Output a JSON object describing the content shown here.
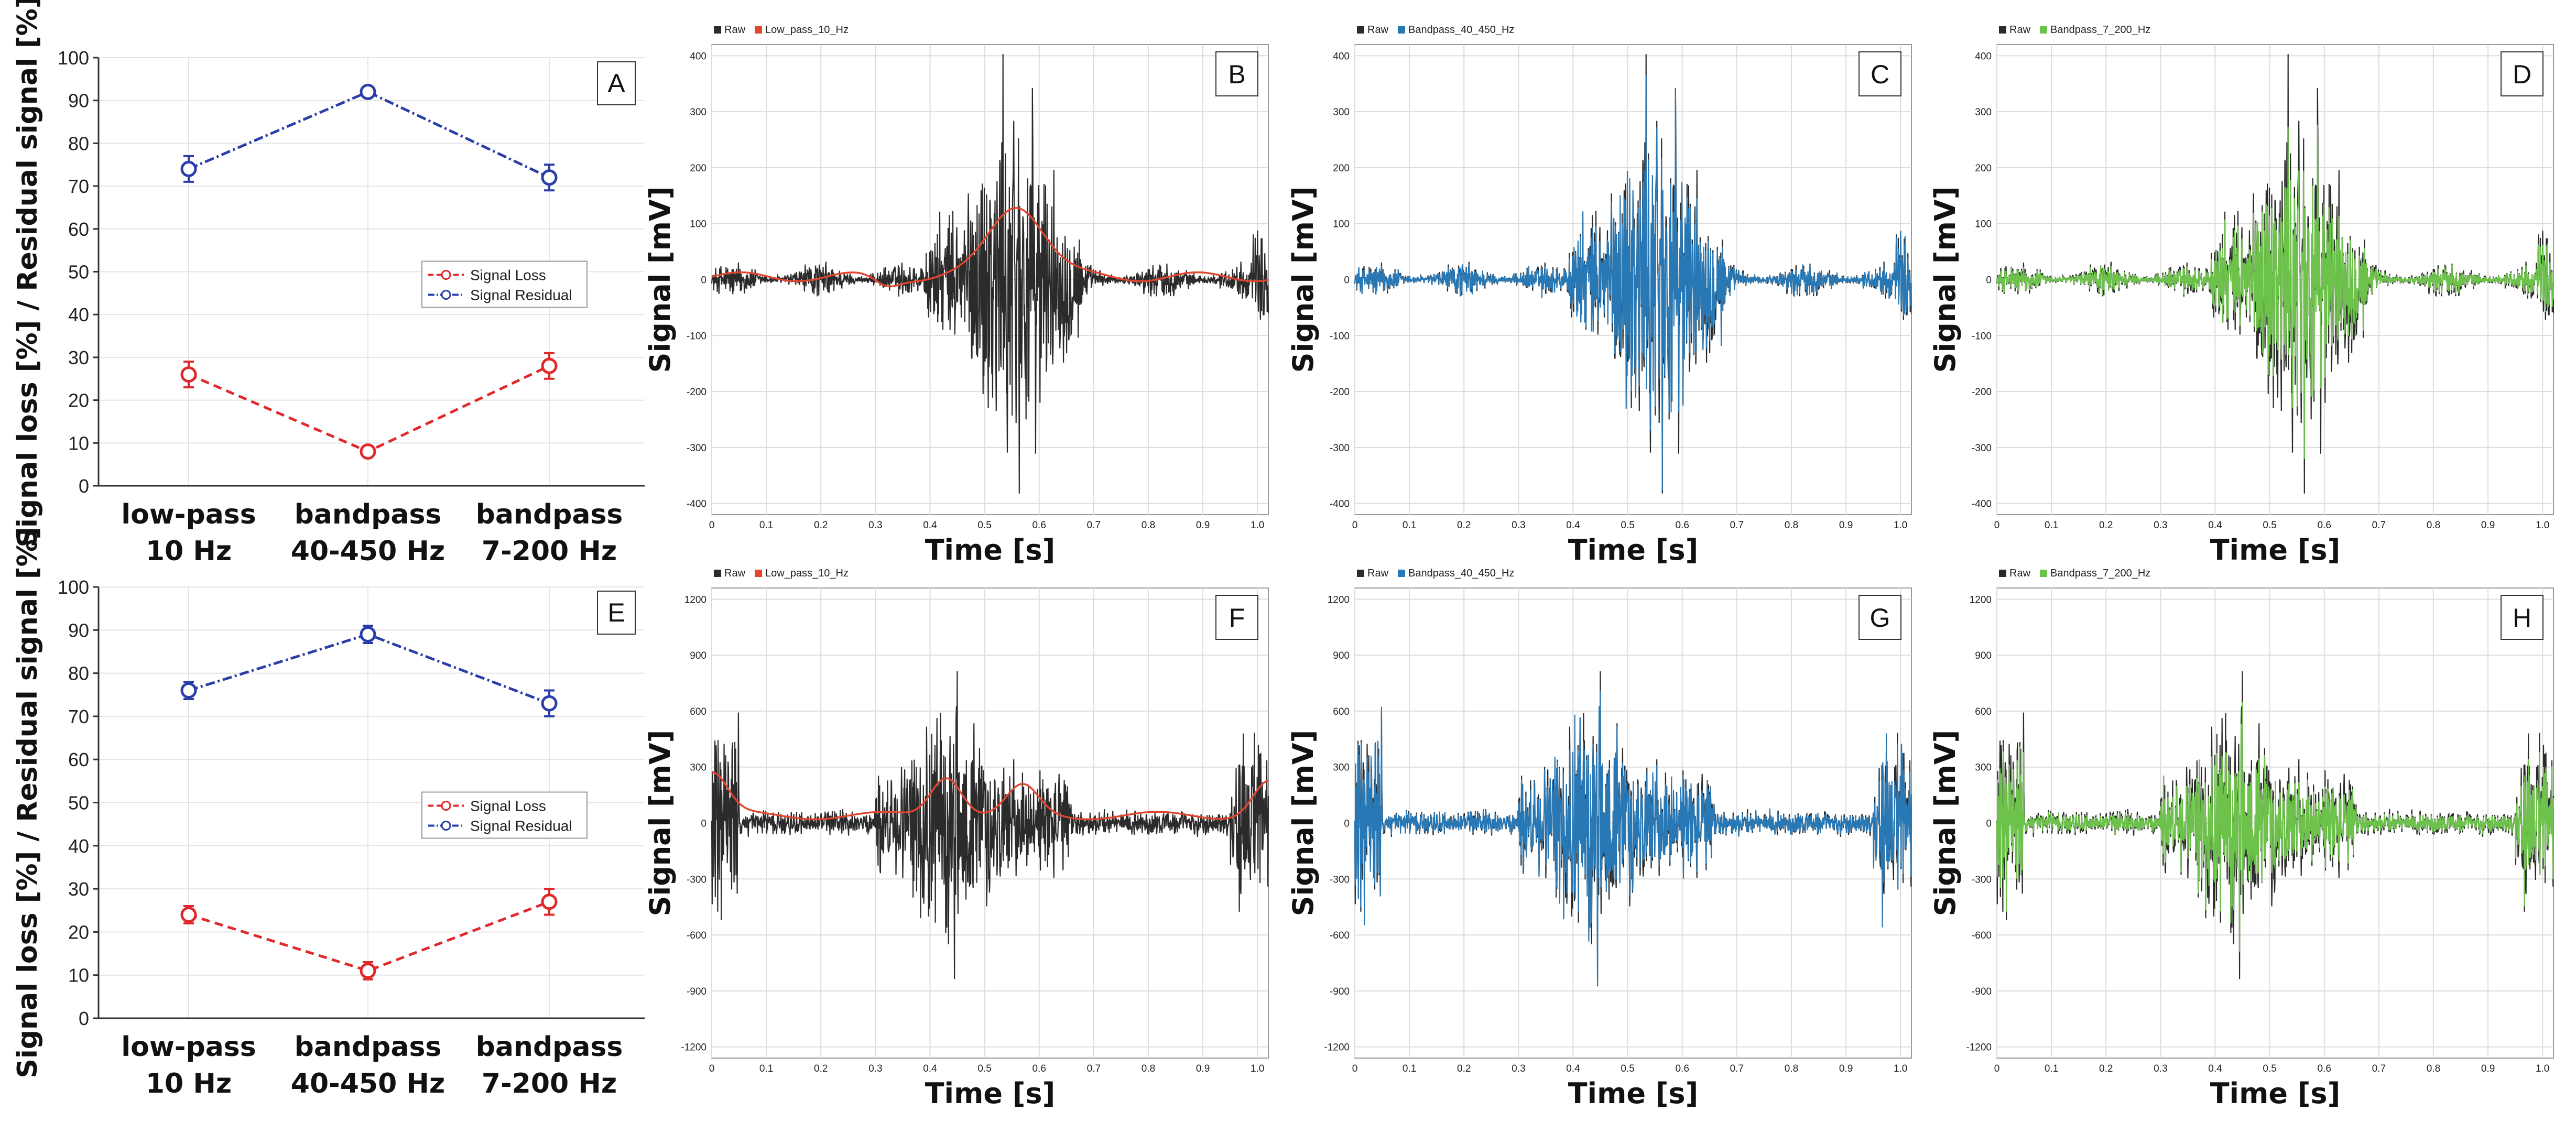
{
  "summary_panels": [
    {
      "letter": "A",
      "ylabel": "Signal loss [%] / Residual signal [%]",
      "yticks": [
        "0",
        "10",
        "20",
        "30",
        "40",
        "50",
        "60",
        "70",
        "80",
        "90",
        "100"
      ],
      "categories": [
        [
          "low-pass",
          "10 Hz"
        ],
        [
          "bandpass",
          "40-450 Hz"
        ],
        [
          "bandpass",
          "7-200 Hz"
        ]
      ],
      "series": [
        {
          "name": "Signal Loss",
          "color": "#e0282b",
          "values": [
            26,
            8,
            28
          ],
          "errors": [
            3,
            1,
            3
          ]
        },
        {
          "name": "Signal Residual",
          "color": "#2a3da8",
          "values": [
            74,
            92,
            72
          ],
          "errors": [
            3,
            1,
            3
          ]
        }
      ]
    },
    {
      "letter": "E",
      "ylabel": "Signal loss [%] / Residual signal [%]",
      "yticks": [
        "0",
        "10",
        "20",
        "30",
        "40",
        "50",
        "60",
        "70",
        "80",
        "90",
        "100"
      ],
      "categories": [
        [
          "low-pass",
          "10 Hz"
        ],
        [
          "bandpass",
          "40-450 Hz"
        ],
        [
          "bandpass",
          "7-200 Hz"
        ]
      ],
      "series": [
        {
          "name": "Signal Loss",
          "color": "#e0282b",
          "values": [
            24,
            11,
            27
          ],
          "errors": [
            2,
            2,
            3
          ]
        },
        {
          "name": "Signal Residual",
          "color": "#2a3da8",
          "values": [
            76,
            89,
            73
          ],
          "errors": [
            2,
            2,
            3
          ]
        }
      ]
    }
  ],
  "chart_data": [
    {
      "panel": "A",
      "type": "line",
      "x": [
        "low-pass 10 Hz",
        "bandpass 40-450 Hz",
        "bandpass 7-200 Hz"
      ],
      "ylim": [
        0,
        100
      ],
      "series": [
        {
          "name": "Signal Loss",
          "values": [
            26,
            8,
            28
          ]
        },
        {
          "name": "Signal Residual",
          "values": [
            74,
            92,
            72
          ]
        }
      ],
      "ylabel": "Signal loss [%] / Residual signal [%]"
    },
    {
      "panel": "E",
      "type": "line",
      "x": [
        "low-pass 10 Hz",
        "bandpass 40-450 Hz",
        "bandpass 7-200 Hz"
      ],
      "ylim": [
        0,
        100
      ],
      "series": [
        {
          "name": "Signal Loss",
          "values": [
            24,
            11,
            27
          ]
        },
        {
          "name": "Signal Residual",
          "values": [
            76,
            89,
            73
          ]
        }
      ],
      "ylabel": "Signal loss [%] / Residual signal [%]"
    },
    {
      "panel": "B",
      "type": "line",
      "xlim": [
        0,
        1.02
      ],
      "ylim": [
        -420,
        420
      ],
      "series": [
        "Raw",
        "Low_pass_10_Hz"
      ],
      "xlabel": "Time [s]",
      "ylabel": "Signal [mV]"
    },
    {
      "panel": "C",
      "type": "line",
      "xlim": [
        0,
        1.02
      ],
      "ylim": [
        -420,
        420
      ],
      "series": [
        "Raw",
        "Bandpass_40_450_Hz"
      ],
      "xlabel": "Time [s]",
      "ylabel": "Signal [mV]"
    },
    {
      "panel": "D",
      "type": "line",
      "xlim": [
        0,
        1.02
      ],
      "ylim": [
        -420,
        420
      ],
      "series": [
        "Raw",
        "Bandpass_7_200_Hz"
      ],
      "xlabel": "Time [s]",
      "ylabel": "Signal [mV]"
    },
    {
      "panel": "F",
      "type": "line",
      "xlim": [
        0,
        1.02
      ],
      "ylim": [
        -1260,
        1260
      ],
      "series": [
        "Raw",
        "Low_pass_10_Hz"
      ],
      "xlabel": "Time [s]",
      "ylabel": "Signal [mV]"
    },
    {
      "panel": "G",
      "type": "line",
      "xlim": [
        0,
        1.02
      ],
      "ylim": [
        -1260,
        1260
      ],
      "series": [
        "Raw",
        "Bandpass_40_450_Hz"
      ],
      "xlabel": "Time [s]",
      "ylabel": "Signal [mV]"
    },
    {
      "panel": "H",
      "type": "line",
      "xlim": [
        0,
        1.02
      ],
      "ylim": [
        -1260,
        1260
      ],
      "series": [
        "Raw",
        "Bandpass_7_200_Hz"
      ],
      "xlabel": "Time [s]",
      "ylabel": "Signal [mV]"
    }
  ],
  "signal_panels": [
    {
      "letter": "B",
      "raw_label": "Raw",
      "filt_label": "Low_pass_10_Hz",
      "filt_color": "#e2452e",
      "mode": "lowpass",
      "set": 0,
      "ylim": [
        -420,
        420
      ],
      "yticks": [
        "400",
        "300",
        "200",
        "100",
        "0",
        "-100",
        "-200",
        "-300",
        "-400"
      ],
      "ytick_values": [
        400,
        300,
        200,
        100,
        0,
        -100,
        -200,
        -300,
        -400
      ]
    },
    {
      "letter": "C",
      "raw_label": "Raw",
      "filt_label": "Bandpass_40_450_Hz",
      "filt_color": "#2878b5",
      "mode": "band",
      "set": 0,
      "ylim": [
        -420,
        420
      ],
      "yticks": [
        "400",
        "300",
        "200",
        "100",
        "0",
        "-100",
        "-200",
        "-300",
        "-400"
      ],
      "ytick_values": [
        400,
        300,
        200,
        100,
        0,
        -100,
        -200,
        -300,
        -400
      ]
    },
    {
      "letter": "D",
      "raw_label": "Raw",
      "filt_label": "Bandpass_7_200_Hz",
      "filt_color": "#6cc24a",
      "mode": "band7",
      "set": 0,
      "ylim": [
        -420,
        420
      ],
      "yticks": [
        "400",
        "300",
        "200",
        "100",
        "0",
        "-100",
        "-200",
        "-300",
        "-400"
      ],
      "ytick_values": [
        400,
        300,
        200,
        100,
        0,
        -100,
        -200,
        -300,
        -400
      ]
    },
    {
      "letter": "F",
      "raw_label": "Raw",
      "filt_label": "Low_pass_10_Hz",
      "filt_color": "#e2452e",
      "mode": "lowpass",
      "set": 1,
      "ylim": [
        -1260,
        1260
      ],
      "yticks": [
        "1200",
        "900",
        "600",
        "300",
        "0",
        "-300",
        "-600",
        "-900",
        "-1200"
      ],
      "ytick_values": [
        1200,
        900,
        600,
        300,
        0,
        -300,
        -600,
        -900,
        -1200
      ]
    },
    {
      "letter": "G",
      "raw_label": "Raw",
      "filt_label": "Bandpass_40_450_Hz",
      "filt_color": "#2878b5",
      "mode": "band",
      "set": 1,
      "ylim": [
        -1260,
        1260
      ],
      "yticks": [
        "1200",
        "900",
        "600",
        "300",
        "0",
        "-300",
        "-600",
        "-900",
        "-1200"
      ],
      "ytick_values": [
        1200,
        900,
        600,
        300,
        0,
        -300,
        -600,
        -900,
        -1200
      ]
    },
    {
      "letter": "H",
      "raw_label": "Raw",
      "filt_label": "Bandpass_7_200_Hz",
      "filt_color": "#6cc24a",
      "mode": "band7",
      "set": 1,
      "ylim": [
        -1260,
        1260
      ],
      "yticks": [
        "1200",
        "900",
        "600",
        "300",
        "0",
        "-300",
        "-600",
        "-900",
        "-1200"
      ],
      "ytick_values": [
        1200,
        900,
        600,
        300,
        0,
        -300,
        -600,
        -900,
        -1200
      ]
    }
  ],
  "signal_axes": {
    "xlabel": "Time [s]",
    "ylabel": "Signal [mV]",
    "xlim": [
      0,
      1.02
    ],
    "xticks": [
      "0",
      "0.1",
      "0.2",
      "0.3",
      "0.4",
      "0.5",
      "0.6",
      "0.7",
      "0.8",
      "0.9",
      "1.0"
    ],
    "xtick_values": [
      0,
      0.1,
      0.2,
      0.3,
      0.4,
      0.5,
      0.6,
      0.7,
      0.8,
      0.9,
      1.0
    ]
  },
  "colors": {
    "raw": "#2b2b2b",
    "grid": "#dcdcdc",
    "frame": "#9a9a9a"
  }
}
